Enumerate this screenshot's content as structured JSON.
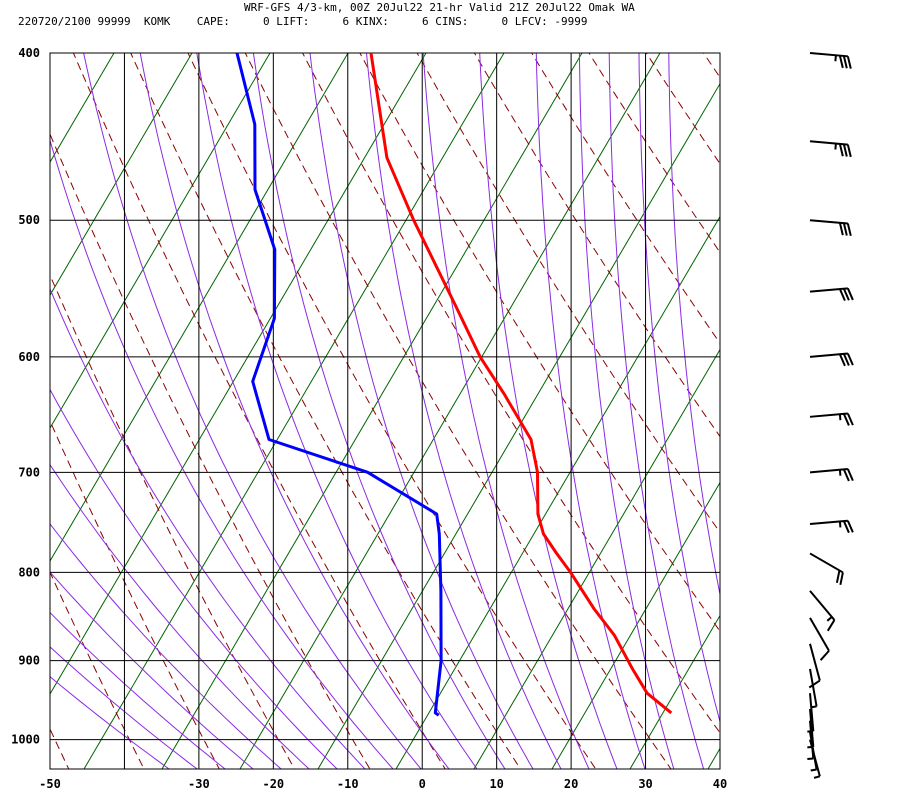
{
  "header": {
    "title": "WRF-GFS 4/3-km, 00Z 20Jul22 21-hr Valid 21Z 20Jul22 Omak WA",
    "info": "220720/2100 99999  KOMK    CAPE:     0 LIFT:     6 KINX:     6 CINS:     0 LFCV: -9999"
  },
  "chart_data": {
    "type": "skew-t",
    "x_axis": {
      "ticks": [
        "-50",
        "-30",
        "-20",
        "-10",
        "0",
        "10",
        "20",
        "30",
        "40"
      ],
      "range": [
        -50,
        40
      ],
      "grid_values": [
        -40,
        -30,
        -20,
        -10,
        0,
        10,
        20,
        30
      ]
    },
    "y_axis": {
      "ticks": [
        "400",
        "500",
        "600",
        "700",
        "800",
        "900",
        "1000"
      ],
      "values": [
        400,
        500,
        600,
        700,
        800,
        900,
        1000
      ],
      "range": [
        400,
        1040
      ],
      "log_scale": true
    },
    "temperature": {
      "color": "#ff0000",
      "points": [
        [
          965,
          32.2
        ],
        [
          940,
          28.5
        ],
        [
          910,
          26.0
        ],
        [
          870,
          22.8
        ],
        [
          840,
          19.5
        ],
        [
          800,
          15.5
        ],
        [
          780,
          13.2
        ],
        [
          760,
          11.0
        ],
        [
          740,
          9.8
        ],
        [
          700,
          8.8
        ],
        [
          670,
          7.2
        ],
        [
          630,
          2.5
        ],
        [
          600,
          -1.5
        ],
        [
          560,
          -6.0
        ],
        [
          500,
          -13.5
        ],
        [
          460,
          -18.5
        ],
        [
          400,
          -23.0
        ]
      ]
    },
    "dewpoint": {
      "color": "#0000ff",
      "points": [
        [
          968,
          1.0
        ],
        [
          965,
          0.5
        ],
        [
          900,
          0.1
        ],
        [
          820,
          -1.5
        ],
        [
          760,
          -3.0
        ],
        [
          740,
          -3.8
        ],
        [
          700,
          -14.0
        ],
        [
          670,
          -28.0
        ],
        [
          620,
          -31.5
        ],
        [
          570,
          -30.0
        ],
        [
          520,
          -31.5
        ],
        [
          480,
          -35.5
        ],
        [
          440,
          -37.0
        ],
        [
          400,
          -41.0
        ]
      ]
    },
    "isotherm_color": "#000000",
    "dry_adiabat_color": "#8b0000",
    "moist_adiabat_color": "#8a2be2",
    "mixing_ratio_color": "#006400",
    "wind_barbs": {
      "color": "#000000",
      "levels": [
        {
          "p": 400,
          "dir": 275,
          "spd": 35
        },
        {
          "p": 450,
          "dir": 275,
          "spd": 35
        },
        {
          "p": 500,
          "dir": 275,
          "spd": 30
        },
        {
          "p": 550,
          "dir": 265,
          "spd": 30
        },
        {
          "p": 600,
          "dir": 265,
          "spd": 30
        },
        {
          "p": 650,
          "dir": 265,
          "spd": 25
        },
        {
          "p": 700,
          "dir": 265,
          "spd": 25
        },
        {
          "p": 750,
          "dir": 265,
          "spd": 25
        },
        {
          "p": 780,
          "dir": 300,
          "spd": 20
        },
        {
          "p": 820,
          "dir": 320,
          "spd": 15
        },
        {
          "p": 850,
          "dir": 330,
          "spd": 10
        },
        {
          "p": 880,
          "dir": 345,
          "spd": 10
        },
        {
          "p": 910,
          "dir": 350,
          "spd": 5
        },
        {
          "p": 940,
          "dir": 355,
          "spd": 5
        },
        {
          "p": 960,
          "dir": 355,
          "spd": 5
        },
        {
          "p": 975,
          "dir": 355,
          "spd": 5
        },
        {
          "p": 990,
          "dir": 350,
          "spd": 5
        },
        {
          "p": 1000,
          "dir": 345,
          "spd": 5
        }
      ]
    }
  }
}
